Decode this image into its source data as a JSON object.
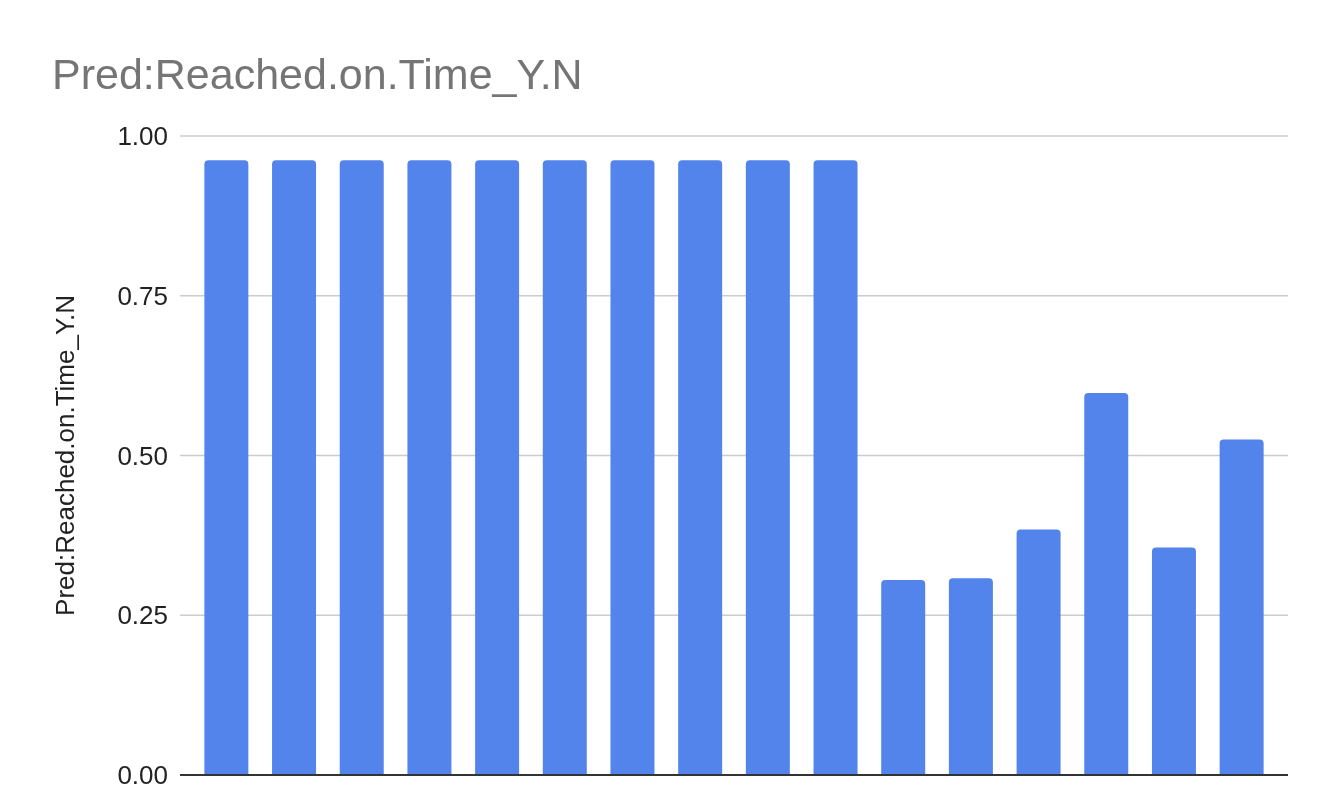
{
  "chart_data": {
    "type": "bar",
    "title": "Pred:Reached.on.Time_Y.N",
    "ylabel": "Pred:Reached.on.Time_Y.N",
    "categories": [
      null,
      null,
      null,
      null,
      null,
      null,
      null,
      null,
      null,
      null,
      null,
      null,
      null,
      null,
      null,
      null
    ],
    "values": [
      0.962,
      0.962,
      0.962,
      0.962,
      0.962,
      0.962,
      0.962,
      0.962,
      0.962,
      0.962,
      0.305,
      0.308,
      0.384,
      0.598,
      0.356,
      0.525
    ],
    "color": "#5384ec",
    "ylim": [
      0,
      1
    ],
    "yticks": [
      {
        "value": 0,
        "label": "0.00"
      },
      {
        "value": 0.25,
        "label": "0.25"
      },
      {
        "value": 0.5,
        "label": "0.50"
      },
      {
        "value": 0.75,
        "label": "0.75"
      },
      {
        "value": 1,
        "label": "1.00"
      }
    ],
    "grid": "y"
  }
}
